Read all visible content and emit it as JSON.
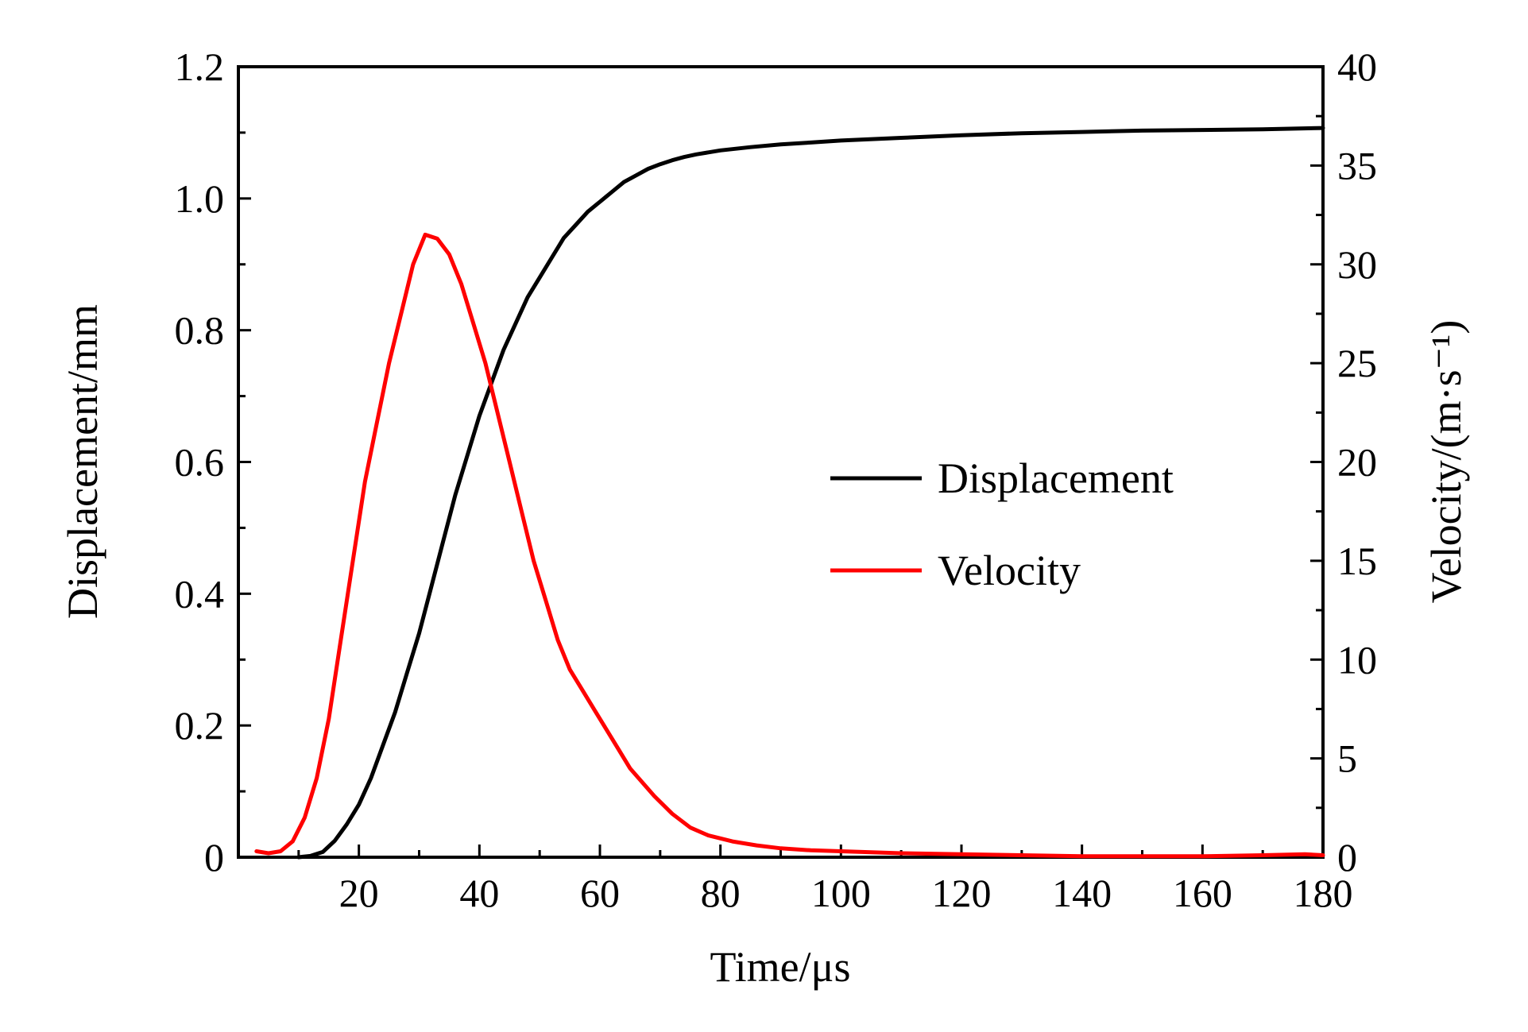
{
  "chart_data": {
    "type": "line",
    "xlabel": "Time/μs",
    "ylabel_left": "Displacement/mm",
    "ylabel_right": "Velocity/(m·s⁻¹)",
    "xlim": [
      0,
      180
    ],
    "ylim_left": [
      0,
      1.2
    ],
    "ylim_right": [
      0,
      40
    ],
    "x_ticks": [
      "20",
      "40",
      "60",
      "80",
      "100",
      "120",
      "140",
      "160",
      "180"
    ],
    "y_left_ticks": [
      "0",
      "0.2",
      "0.4",
      "0.6",
      "0.8",
      "1.0",
      "1.2"
    ],
    "y_right_ticks": [
      "0",
      "5",
      "10",
      "15",
      "20",
      "25",
      "30",
      "35",
      "40"
    ],
    "legend_position": "center-right",
    "grid": false,
    "series": [
      {
        "name": "Displacement",
        "axis": "left",
        "color": "#000000",
        "x": [
          10,
          12,
          14,
          16,
          18,
          20,
          22,
          24,
          26,
          28,
          30,
          32,
          34,
          36,
          38,
          40,
          42,
          44,
          46,
          48,
          50,
          52,
          54,
          56,
          58,
          60,
          62,
          64,
          66,
          68,
          70,
          72,
          74,
          76,
          78,
          80,
          85,
          90,
          95,
          100,
          110,
          120,
          130,
          140,
          150,
          160,
          170,
          180
        ],
        "y": [
          0,
          0.002,
          0.008,
          0.025,
          0.05,
          0.08,
          0.12,
          0.17,
          0.22,
          0.28,
          0.34,
          0.41,
          0.48,
          0.55,
          0.61,
          0.67,
          0.72,
          0.77,
          0.81,
          0.85,
          0.88,
          0.91,
          0.94,
          0.96,
          0.98,
          0.995,
          1.01,
          1.025,
          1.035,
          1.045,
          1.052,
          1.058,
          1.063,
          1.067,
          1.07,
          1.073,
          1.078,
          1.082,
          1.085,
          1.088,
          1.092,
          1.096,
          1.099,
          1.101,
          1.103,
          1.104,
          1.105,
          1.107
        ]
      },
      {
        "name": "Velocity",
        "axis": "right",
        "color": "#ff0000",
        "x": [
          3,
          5,
          7,
          9,
          11,
          13,
          15,
          17,
          19,
          21,
          23,
          25,
          27,
          29,
          31,
          33,
          35,
          37,
          39,
          41,
          43,
          45,
          47,
          49,
          51,
          53,
          55,
          57,
          59,
          61,
          63,
          65,
          67,
          69,
          72,
          75,
          78,
          82,
          86,
          90,
          95,
          100,
          110,
          120,
          130,
          140,
          150,
          160,
          170,
          177,
          180
        ],
        "y": [
          0.3,
          0.2,
          0.3,
          0.8,
          2,
          4,
          7,
          11,
          15,
          19,
          22,
          25,
          27.5,
          30,
          31.5,
          31.3,
          30.5,
          29,
          27,
          25,
          22.5,
          20,
          17.5,
          15,
          13,
          11,
          9.5,
          8.5,
          7.5,
          6.5,
          5.5,
          4.5,
          3.8,
          3.1,
          2.2,
          1.5,
          1.1,
          0.8,
          0.6,
          0.45,
          0.35,
          0.3,
          0.2,
          0.15,
          0.1,
          0.05,
          0.05,
          0.05,
          0.1,
          0.15,
          0.1
        ]
      }
    ]
  }
}
